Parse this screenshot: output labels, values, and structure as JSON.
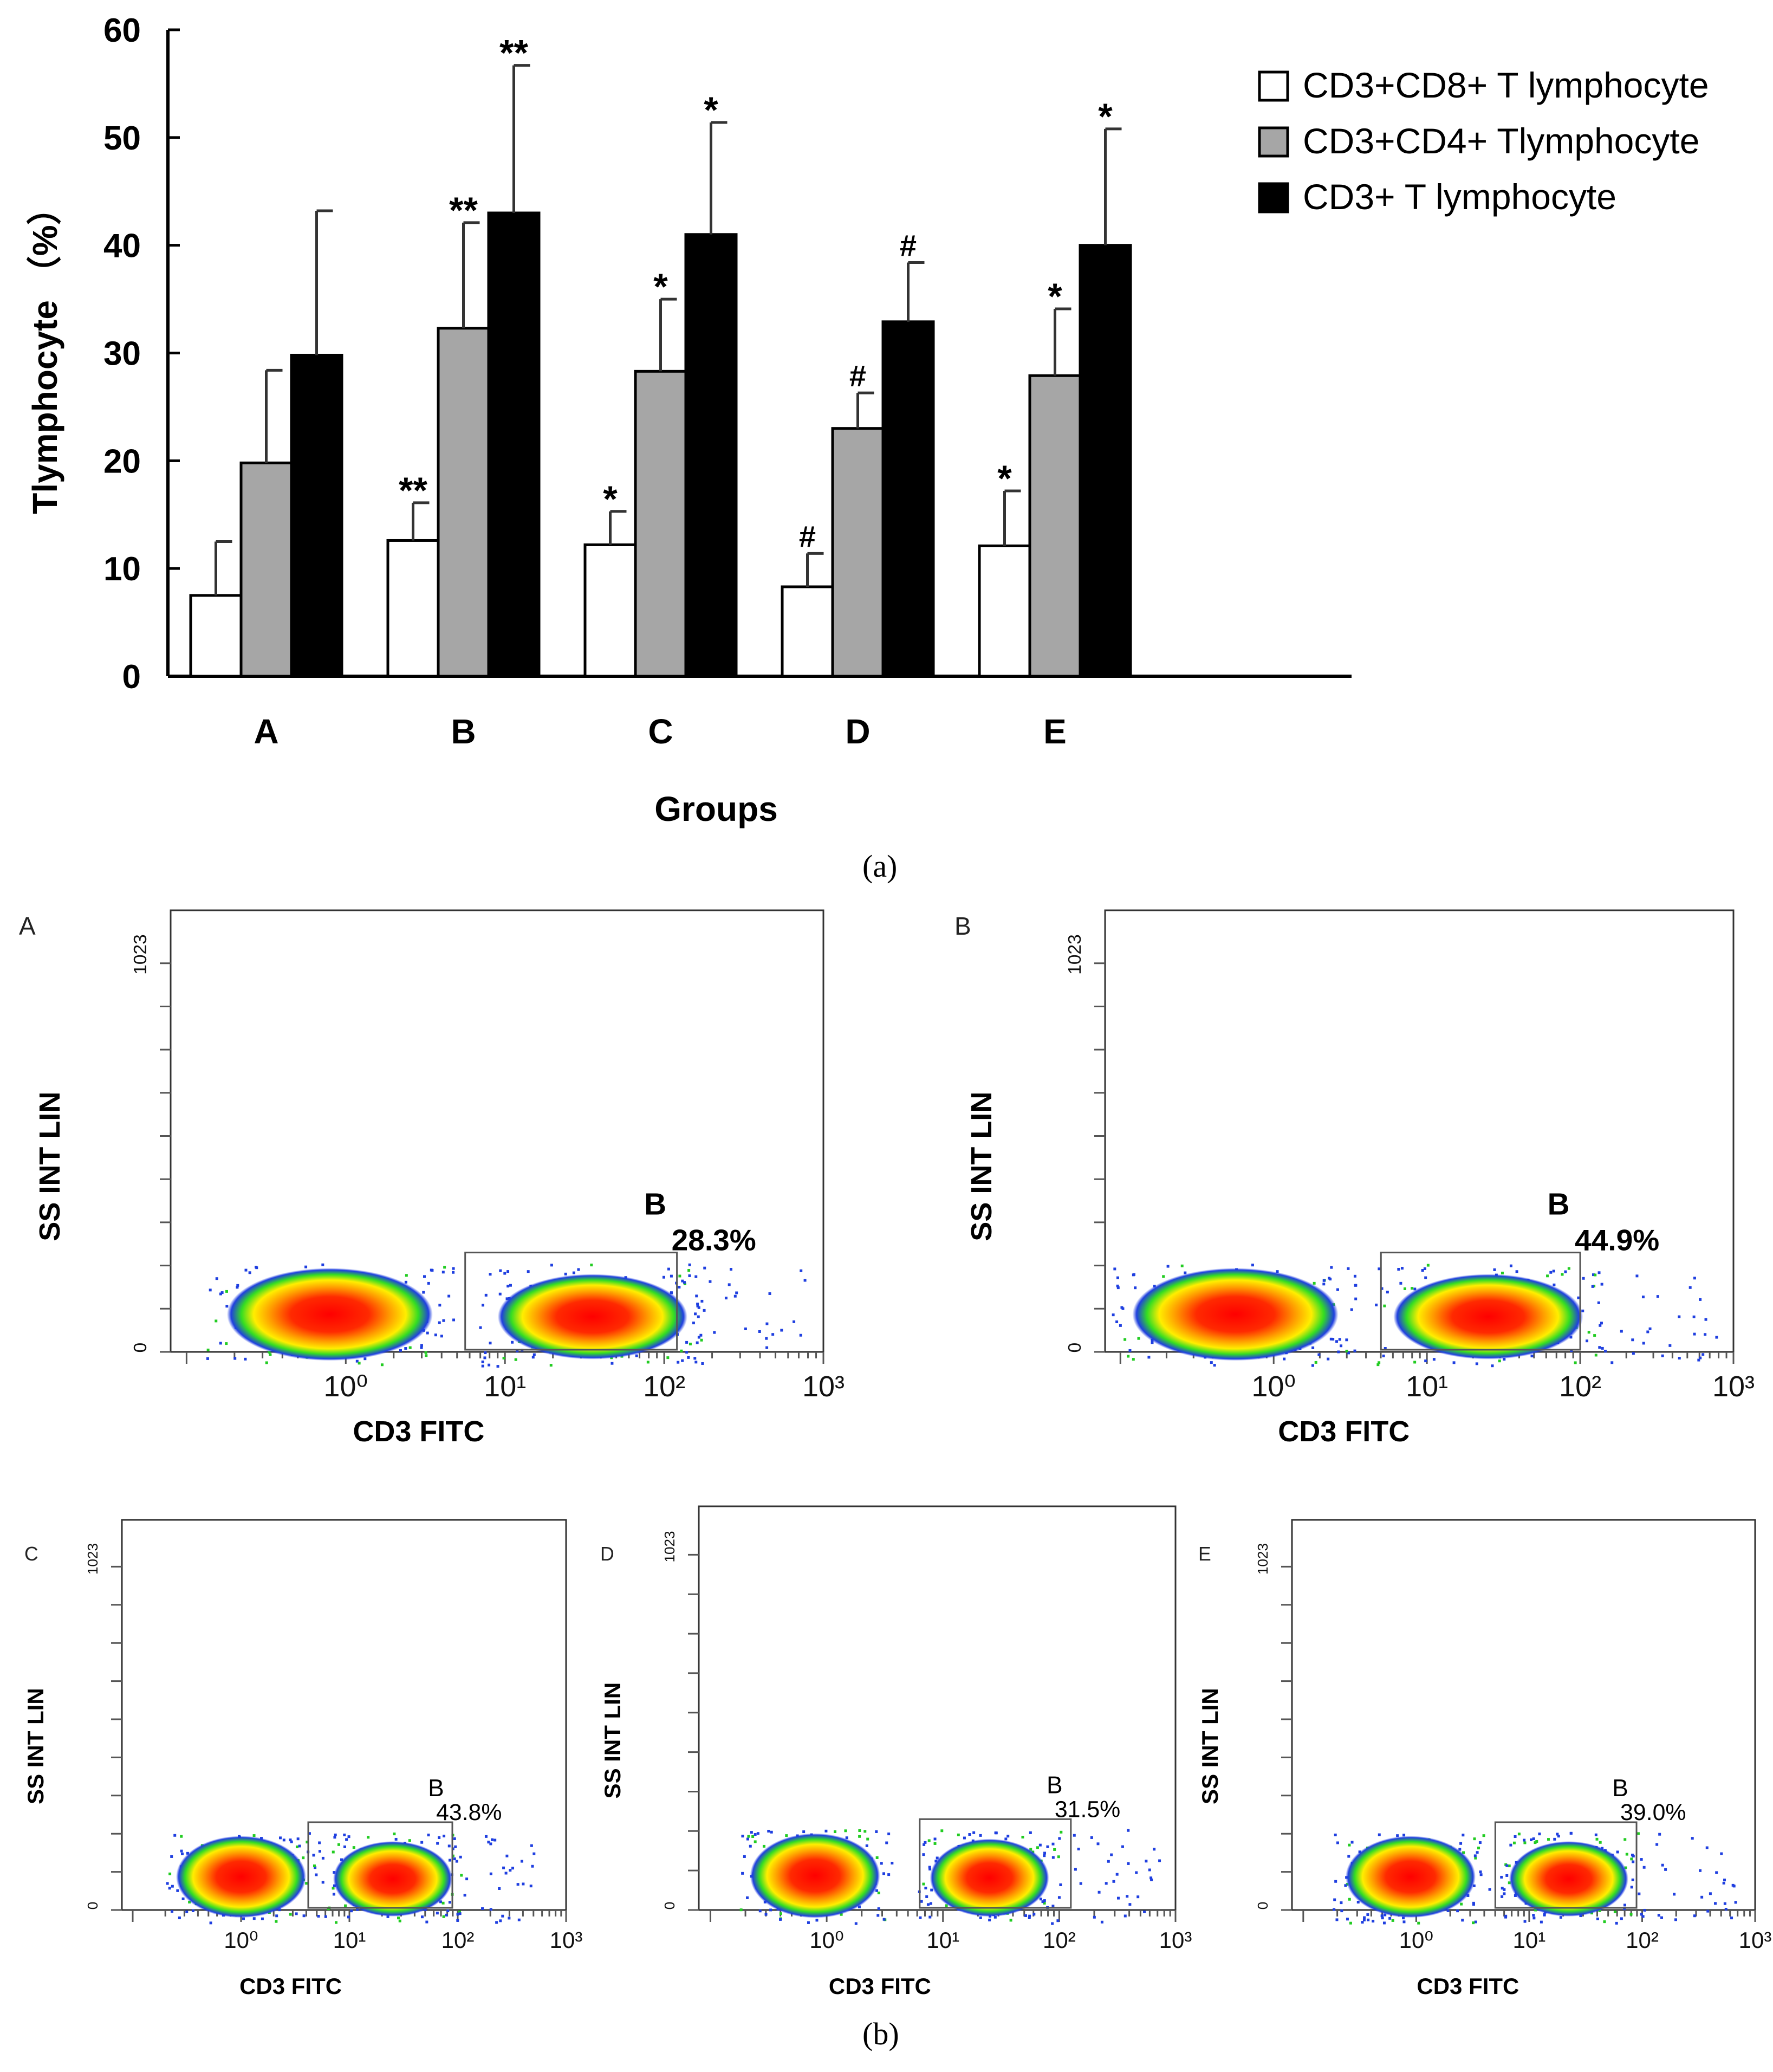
{
  "panel_a_caption": "(a)",
  "panel_b_caption": "(b)",
  "chart_data": [
    {
      "type": "bar",
      "panel": "a",
      "title": "",
      "xlabel": "Groups",
      "ylabel": "Tlymphocyte （%）",
      "ylim": [
        0,
        60
      ],
      "yticks": [
        0,
        10,
        20,
        30,
        40,
        50,
        60
      ],
      "categories": [
        "A",
        "B",
        "C",
        "D",
        "E"
      ],
      "legend_position": "top-right",
      "series": [
        {
          "name": "CD3+CD8+ T lymphocyte",
          "color": "#ffffff",
          "values": [
            7.5,
            12.6,
            12.2,
            8.3,
            12.1
          ],
          "errors": [
            5.0,
            3.5,
            3.1,
            3.1,
            5.1
          ],
          "marks": [
            "",
            "**",
            "*",
            "#",
            "*"
          ]
        },
        {
          "name": "CD3+CD4+ Tlymphocyte",
          "color": "#a6a6a6",
          "values": [
            19.8,
            32.3,
            28.3,
            23.0,
            27.9
          ],
          "errors": [
            8.6,
            9.8,
            6.7,
            3.3,
            6.2
          ],
          "marks": [
            "",
            "**",
            "*",
            "#",
            "*"
          ]
        },
        {
          "name": "CD3+ T lymphocyte",
          "color": "#000000",
          "values": [
            29.8,
            43.0,
            41.0,
            32.9,
            40.0
          ],
          "errors": [
            13.4,
            13.7,
            10.4,
            5.5,
            10.8
          ],
          "marks": [
            "",
            "**",
            "*",
            "#",
            "*"
          ]
        }
      ]
    },
    {
      "type": "scatter",
      "panel": "b",
      "plots": [
        {
          "panel_label": "A",
          "gate_label": "B",
          "gate_percent": "28.3%",
          "gate_range": [
            0.75,
            2.08
          ],
          "neg_center": -0.1,
          "pos_center": 1.55,
          "ylabel": "SS INT LIN",
          "xlabel": "CD3 FITC",
          "ytop_label": "1023",
          "yzero_label": "0",
          "xticks": [
            "10⁰",
            "10¹",
            "10²",
            "10³"
          ]
        },
        {
          "panel_label": "B",
          "gate_label": "B",
          "gate_percent": "44.9%",
          "gate_range": [
            0.7,
            2.0
          ],
          "neg_center": -0.25,
          "pos_center": 1.4,
          "ylabel": "SS INT LIN",
          "xlabel": "CD3 FITC",
          "ytop_label": "1023",
          "yzero_label": "0",
          "xticks": [
            "10⁰",
            "10¹",
            "10²",
            "10³"
          ]
        },
        {
          "panel_label": "C",
          "gate_label": "B",
          "gate_percent": "43.8%",
          "gate_range": [
            0.62,
            1.95
          ],
          "neg_center": 0.0,
          "pos_center": 1.4,
          "ylabel": "SS INT LIN",
          "xlabel": "CD3 FITC",
          "ytop_label": "1023",
          "yzero_label": "0",
          "xticks": [
            "10⁰",
            "10¹",
            "10²",
            "10³"
          ]
        },
        {
          "panel_label": "D",
          "gate_label": "B",
          "gate_percent": "31.5%",
          "gate_range": [
            0.8,
            2.1
          ],
          "neg_center": -0.1,
          "pos_center": 1.4,
          "ylabel": "SS INT LIN",
          "xlabel": "CD3 FITC",
          "ytop_label": "1023",
          "yzero_label": "0",
          "xticks": [
            "10⁰",
            "10¹",
            "10²",
            "10³"
          ]
        },
        {
          "panel_label": "E",
          "gate_label": "B",
          "gate_percent": "39.0%",
          "gate_range": [
            0.7,
            1.95
          ],
          "neg_center": -0.05,
          "pos_center": 1.35,
          "ylabel": "SS INT LIN",
          "xlabel": "CD3 FITC",
          "ytop_label": "1023",
          "yzero_label": "0",
          "xticks": [
            "10⁰",
            "10¹",
            "10²",
            "10³"
          ]
        }
      ]
    }
  ]
}
